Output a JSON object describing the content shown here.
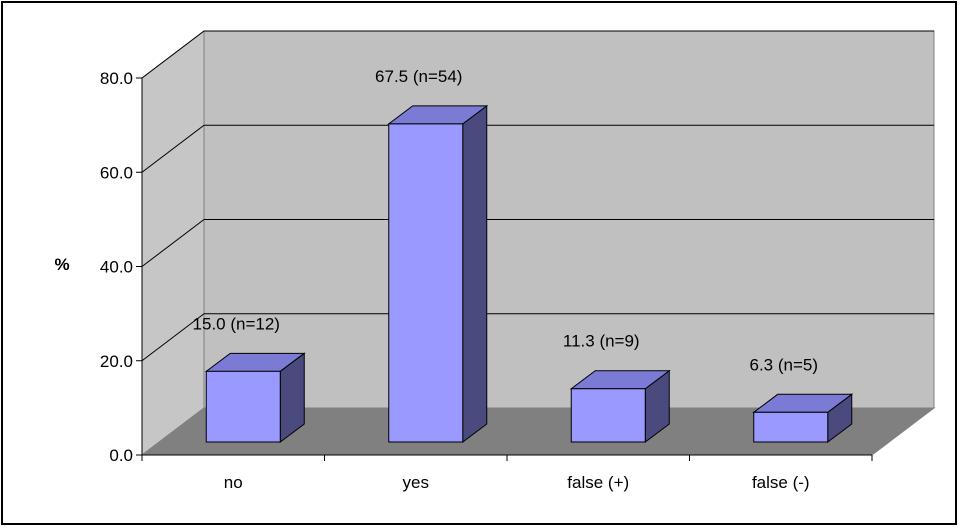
{
  "chart_data": {
    "type": "bar",
    "style": "3d-column",
    "title": "",
    "xlabel": "",
    "ylabel": "%",
    "categories": [
      "no",
      "yes",
      "false (+)",
      "false (-)"
    ],
    "values": [
      15.0,
      67.5,
      11.3,
      6.3
    ],
    "data_labels": [
      "15.0 (n=12)",
      "67.5 (n=54)",
      "11.3 (n=9)",
      "6.3 (n=5)"
    ],
    "yticks": [
      "0.0",
      "20.0",
      "40.0",
      "60.0",
      "80.0"
    ],
    "ylim": [
      0,
      80
    ],
    "grid": true,
    "legend": "none",
    "colors": {
      "bar_front": "#9999ff",
      "bar_side": "#4a4a7e",
      "bar_top": "#7b7bd6",
      "back_wall": "#c0c0c0",
      "side_wall": "#c6c6c6",
      "floor": "#808080",
      "gridline": "#000000"
    }
  }
}
